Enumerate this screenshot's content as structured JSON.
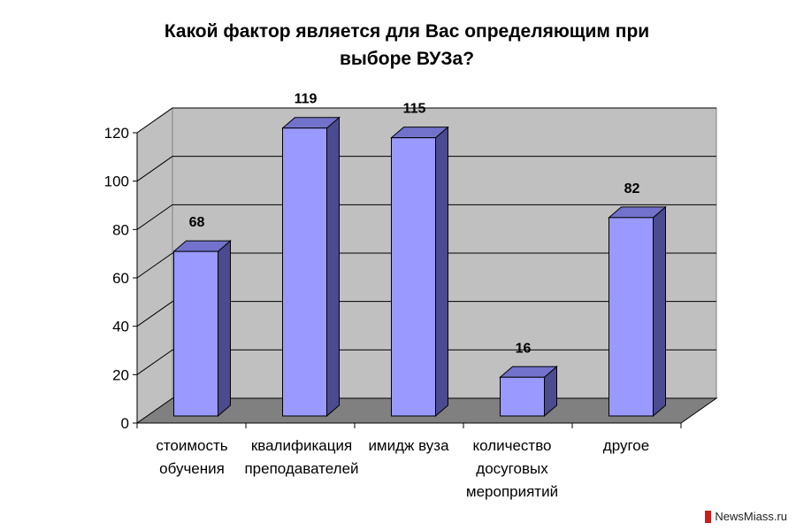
{
  "chart_data": {
    "type": "bar",
    "title_lines": [
      "Какой фактор является для Вас определяющим при",
      "выборе ВУЗа?"
    ],
    "categories": [
      [
        "стоимость",
        "обучения"
      ],
      [
        "квалификация",
        "преподавателей"
      ],
      [
        "имидж вуза"
      ],
      [
        "количество",
        "досуговых",
        "мероприятий"
      ],
      [
        "другое"
      ]
    ],
    "values": [
      68,
      119,
      115,
      16,
      82
    ],
    "data_labels": [
      "68",
      "119",
      "115",
      "16",
      "82"
    ],
    "y_ticks": [
      "0",
      "20",
      "40",
      "60",
      "80",
      "100",
      "120"
    ],
    "ylim": [
      0,
      120
    ],
    "grid": true,
    "three_d": true,
    "bar_color": "#9999ff",
    "bar_side_color": "#4b4b8f",
    "bar_top_color": "#7272cc",
    "wall_color": "#c0c0c0",
    "floor_color": "#808080"
  },
  "watermark": {
    "text": "NewsMiass.ru",
    "accent": "#c8201c"
  }
}
